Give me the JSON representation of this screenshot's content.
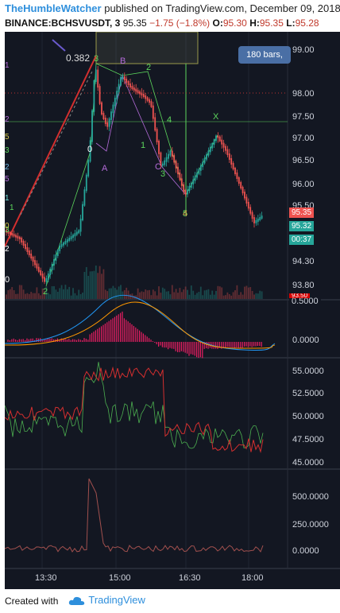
{
  "header": {
    "author": "TheHumbleWatcher",
    "published_text": "published on TradingView.com, December 09, 2018 1",
    "symbol": "BINANCE:BCHSVUSDT, 3",
    "last": "95.35",
    "change": "−1.75 (−1.8%)",
    "open_label": "O:",
    "open_value": "95.30",
    "high_label": "H:",
    "high_value": "95.35",
    "low_label": "L:",
    "low_value": "95.28"
  },
  "chart": {
    "bars_button": "180 bars,",
    "fib_label": "0.382",
    "price_axis": [
      "99.00",
      "98.00",
      "97.50",
      "97.00",
      "96.50",
      "96.00",
      "95.50",
      "94.30",
      "93.80"
    ],
    "badges": {
      "last_price": "95.35",
      "bid_price": "95.32",
      "countdown": "00:37",
      "macd_top": "0.5000",
      "low_marker": "93.50"
    },
    "macd_axis": [
      "0.5000",
      "0.0000"
    ],
    "rsi_axis": [
      "55.0000",
      "52.5000",
      "50.0000",
      "47.5000",
      "45.0000"
    ],
    "vol_axis": [
      "500.0000",
      "250.0000",
      "0.0000"
    ],
    "time_axis": [
      "13:30",
      "15:00",
      "16:30",
      "18:00"
    ],
    "wave_labels": [
      "3",
      "B",
      "2",
      "0",
      "1",
      "A",
      "4",
      "C",
      "3",
      "X",
      "5",
      "4",
      "2",
      "0"
    ],
    "left_labels": [
      "1",
      "5",
      "2",
      "3",
      "2",
      "1",
      "5",
      "1",
      "3",
      "2",
      "0"
    ],
    "colors": {
      "background": "#131722",
      "up": "#26a69a",
      "down": "#ef5350",
      "wave_green": "#5cd65c",
      "wave_purple": "#b36bd8"
    }
  },
  "footer": {
    "created_with": "Created with",
    "brand": "TradingView"
  }
}
